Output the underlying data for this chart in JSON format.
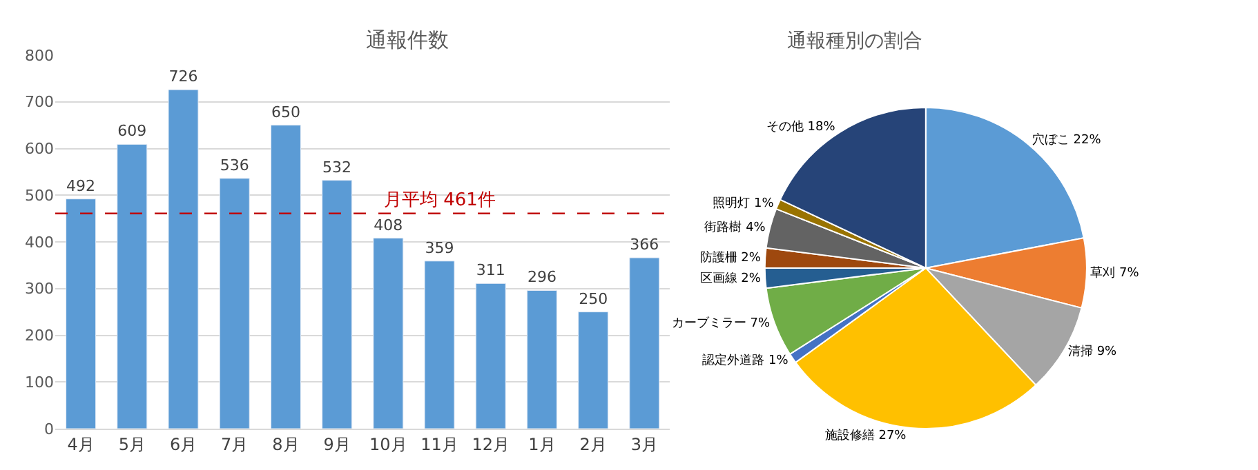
{
  "chart_data": [
    {
      "type": "bar",
      "title": "通報件数",
      "categories": [
        "4月",
        "5月",
        "6月",
        "7月",
        "8月",
        "9月",
        "10月",
        "11月",
        "12月",
        "1月",
        "2月",
        "3月"
      ],
      "values": [
        492,
        609,
        726,
        536,
        650,
        532,
        408,
        359,
        311,
        296,
        250,
        366
      ],
      "color": "#5b9bd5",
      "ylim": [
        0,
        800
      ],
      "yticks": [
        0,
        100,
        200,
        300,
        400,
        500,
        600,
        700,
        800
      ],
      "grid": "y",
      "data_labels": true,
      "ref_lines": [
        {
          "axis": "y",
          "value": 461,
          "label": "月平均 461件",
          "color": "#c00000",
          "line_style": "dashed"
        }
      ]
    },
    {
      "type": "pie",
      "title": "通報種別の割合",
      "categories": [
        "穴ぼこ",
        "草刈",
        "清掃",
        "施設修繕",
        "認定外道路",
        "カーブミラー",
        "区画線",
        "防護柵",
        "街路樹",
        "照明灯",
        "その他"
      ],
      "values": [
        22,
        7,
        9,
        27,
        1,
        7,
        2,
        2,
        4,
        1,
        18
      ],
      "value_labels": [
        "22%",
        "7%",
        "9%",
        "27%",
        "1%",
        "7%",
        "2%",
        "2%",
        "4%",
        "1%",
        "18%"
      ],
      "colors": [
        "#5b9bd5",
        "#ed7d31",
        "#a5a5a5",
        "#ffc000",
        "#4472c4",
        "#70ad47",
        "#255e91",
        "#9e480e",
        "#636363",
        "#997300",
        "#264478"
      ]
    }
  ]
}
